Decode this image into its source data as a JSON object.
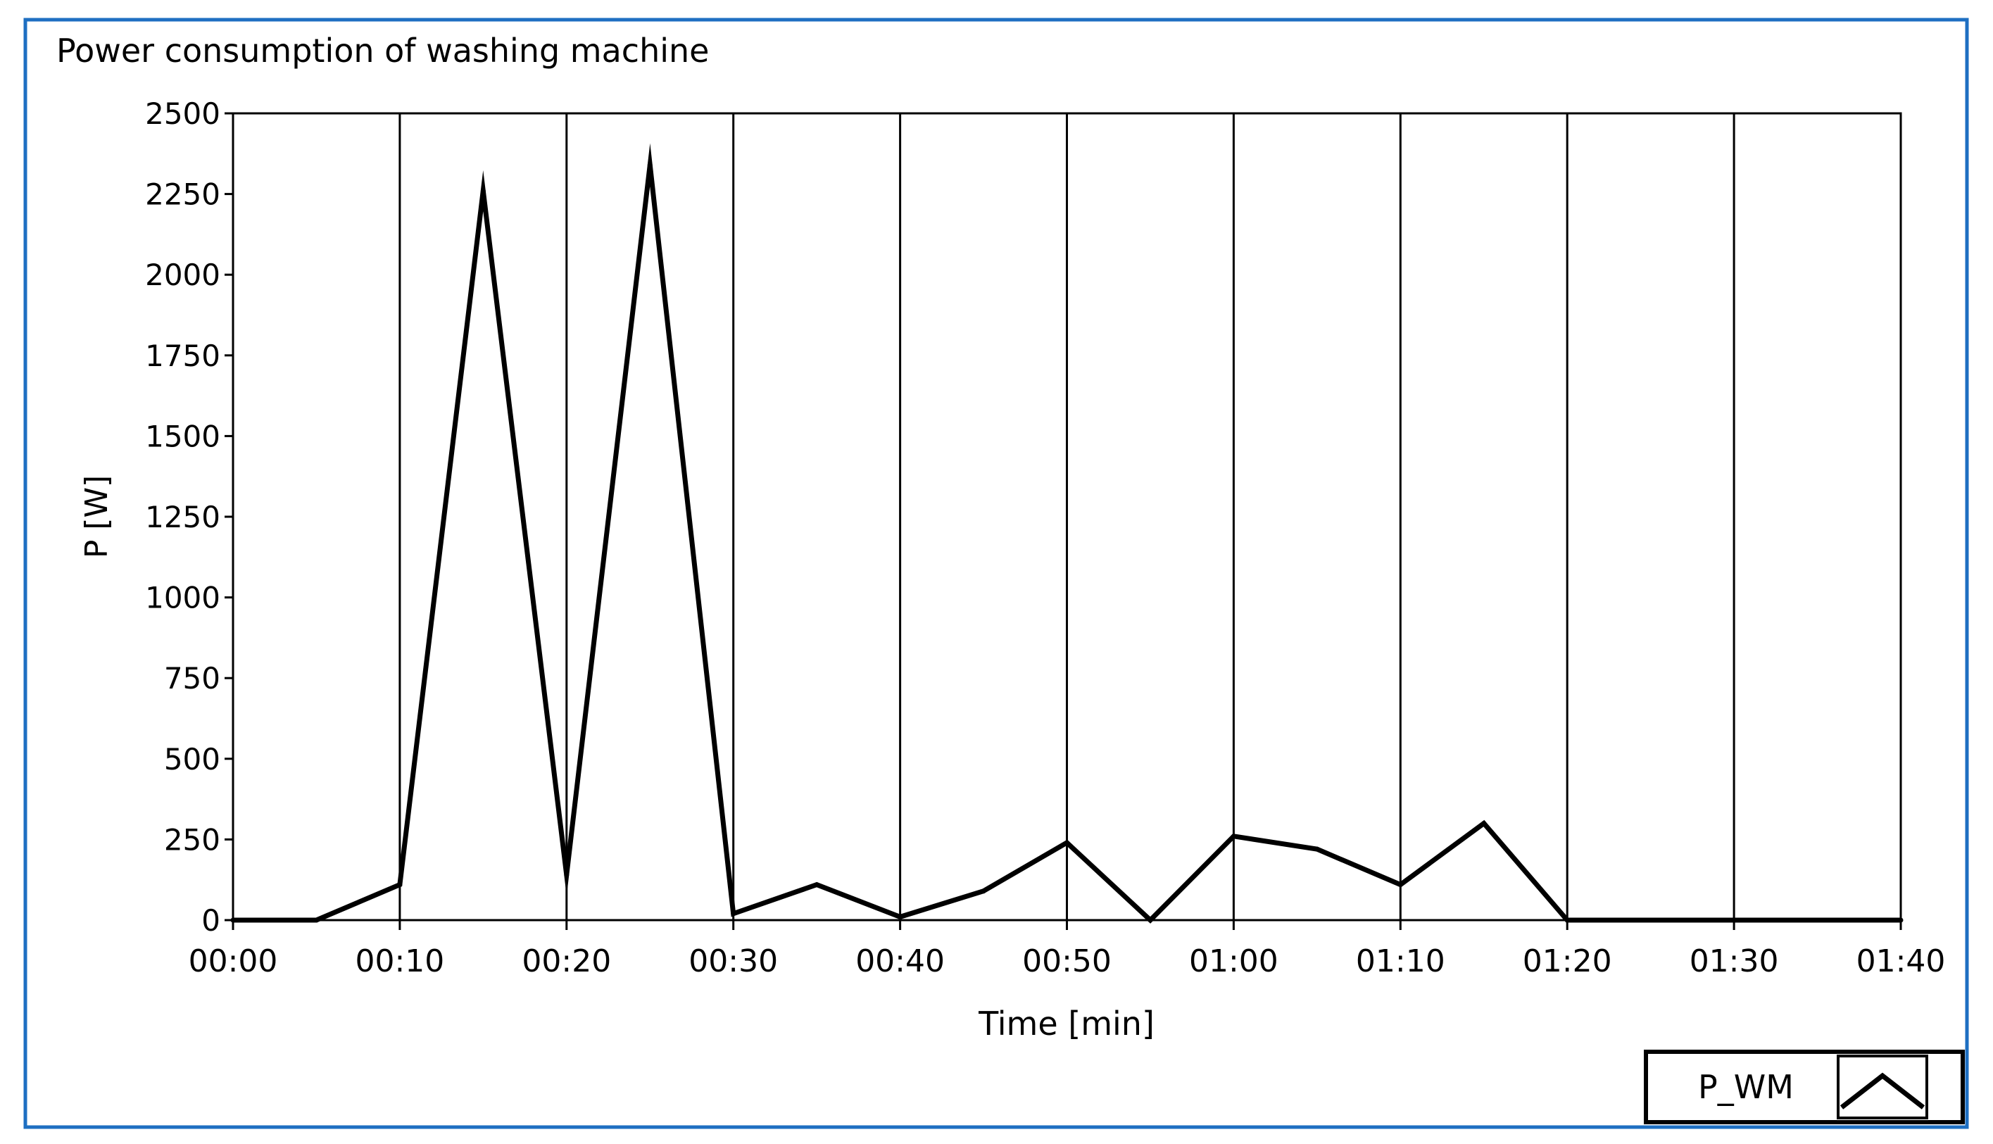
{
  "chart_data": {
    "type": "line",
    "title": "Power consumption of washing machine",
    "xlabel": "Time [min]",
    "ylabel": "P [W]",
    "xlim": [
      0,
      100
    ],
    "ylim": [
      0,
      2500
    ],
    "grid": "vertical",
    "legend_position": "bottom-right",
    "x_ticks": [
      {
        "value": 0,
        "label": "00:00"
      },
      {
        "value": 10,
        "label": "00:10"
      },
      {
        "value": 20,
        "label": "00:20"
      },
      {
        "value": 30,
        "label": "00:30"
      },
      {
        "value": 40,
        "label": "00:40"
      },
      {
        "value": 50,
        "label": "00:50"
      },
      {
        "value": 60,
        "label": "01:00"
      },
      {
        "value": 70,
        "label": "01:10"
      },
      {
        "value": 80,
        "label": "01:20"
      },
      {
        "value": 90,
        "label": "01:30"
      },
      {
        "value": 100,
        "label": "01:40"
      }
    ],
    "y_ticks": [
      {
        "value": 0,
        "label": "0"
      },
      {
        "value": 250,
        "label": "250"
      },
      {
        "value": 500,
        "label": "500"
      },
      {
        "value": 750,
        "label": "750"
      },
      {
        "value": 1000,
        "label": "1000"
      },
      {
        "value": 1250,
        "label": "1250"
      },
      {
        "value": 1500,
        "label": "1500"
      },
      {
        "value": 1750,
        "label": "1750"
      },
      {
        "value": 2000,
        "label": "2000"
      },
      {
        "value": 2250,
        "label": "2250"
      },
      {
        "value": 2500,
        "label": "2500"
      }
    ],
    "series": [
      {
        "name": "P_WM",
        "color": "#000000",
        "x": [
          0,
          5,
          10,
          15,
          20,
          25,
          30,
          35,
          40,
          45,
          50,
          55,
          60,
          65,
          70,
          75,
          80,
          85,
          90,
          95,
          100
        ],
        "y": [
          0,
          0,
          110,
          2260,
          140,
          2340,
          20,
          110,
          10,
          90,
          240,
          0,
          260,
          220,
          110,
          300,
          0,
          0,
          0,
          0,
          0
        ]
      }
    ]
  },
  "colors": {
    "frame_border": "#1e6fc2",
    "plot_line": "#000000",
    "background": "#ffffff"
  }
}
